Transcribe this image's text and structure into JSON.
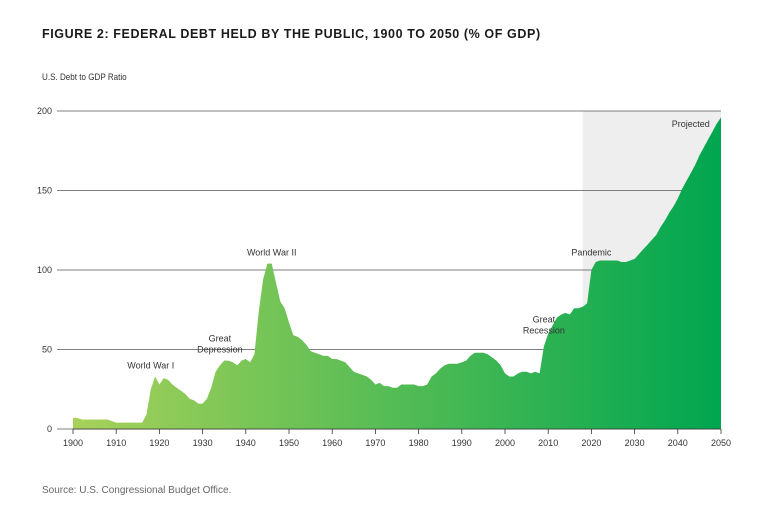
{
  "title": "FIGURE 2: FEDERAL DEBT HELD BY THE PUBLIC, 1900 TO 2050 (% OF GDP)",
  "source": "Source: U.S. Congressional Budget Office.",
  "colors": {
    "start": "#a8d15a",
    "end": "#00a650",
    "projected_bg": "#eeeeee",
    "grid": "#555555"
  },
  "chart_data": {
    "type": "area",
    "title": "FIGURE 2: FEDERAL DEBT HELD BY THE PUBLIC, 1900 TO 2050 (% OF GDP)",
    "ylabel": "U.S. Debt to GDP Ratio",
    "xlabel": "",
    "xlim": [
      1900,
      2050
    ],
    "ylim": [
      0,
      200
    ],
    "grid": true,
    "xticks": [
      "1900",
      "1910",
      "1920",
      "1930",
      "1940",
      "1950",
      "1960",
      "1970",
      "1980",
      "1990",
      "2000",
      "2010",
      "2020",
      "2030",
      "2040",
      "2050"
    ],
    "yticks": [
      "0",
      "50",
      "100",
      "150",
      "200"
    ],
    "projected_start": 2018,
    "series": [
      {
        "x": [
          1900,
          1901,
          1902,
          1903,
          1904,
          1905,
          1906,
          1907,
          1908,
          1909,
          1910,
          1911,
          1912,
          1913,
          1914,
          1915,
          1916,
          1917,
          1918,
          1919,
          1920,
          1921,
          1922,
          1923,
          1924,
          1925,
          1926,
          1927,
          1928,
          1929,
          1930,
          1931,
          1932,
          1933,
          1934,
          1935,
          1936,
          1937,
          1938,
          1939,
          1940,
          1941,
          1942,
          1943,
          1944,
          1945,
          1946,
          1947,
          1948,
          1949,
          1950,
          1951,
          1952,
          1953,
          1954,
          1955,
          1956,
          1957,
          1958,
          1959,
          1960,
          1961,
          1962,
          1963,
          1964,
          1965,
          1966,
          1967,
          1968,
          1969,
          1970,
          1971,
          1972,
          1973,
          1974,
          1975,
          1976,
          1977,
          1978,
          1979,
          1980,
          1981,
          1982,
          1983,
          1984,
          1985,
          1986,
          1987,
          1988,
          1989,
          1990,
          1991,
          1992,
          1993,
          1994,
          1995,
          1996,
          1997,
          1998,
          1999,
          2000,
          2001,
          2002,
          2003,
          2004,
          2005,
          2006,
          2007,
          2008,
          2009,
          2010,
          2011,
          2012,
          2013,
          2014,
          2015,
          2016,
          2017,
          2018,
          2019,
          2020,
          2021,
          2022,
          2023,
          2024,
          2025,
          2026,
          2027,
          2028,
          2029,
          2030,
          2031,
          2032,
          2033,
          2034,
          2035,
          2036,
          2037,
          2038,
          2039,
          2040,
          2041,
          2042,
          2043,
          2044,
          2045,
          2046,
          2047,
          2048,
          2049,
          2050
        ],
        "values": [
          7,
          7,
          6,
          6,
          6,
          6,
          6,
          6,
          6,
          5,
          4,
          4,
          4,
          4,
          4,
          4,
          4,
          9,
          25,
          33,
          28,
          32,
          31,
          28,
          26,
          24,
          22,
          19,
          18,
          16,
          16,
          19,
          26,
          36,
          40,
          43,
          43,
          42,
          40,
          43,
          44,
          42,
          47,
          74,
          94,
          104,
          104,
          92,
          80,
          76,
          67,
          59,
          58,
          56,
          53,
          49,
          48,
          47,
          46,
          46,
          44,
          44,
          43,
          42,
          39,
          36,
          35,
          34,
          33,
          31,
          28,
          29,
          27,
          27,
          26,
          26,
          28,
          28,
          28,
          28,
          27,
          27,
          28,
          33,
          35,
          38,
          40,
          41,
          41,
          41,
          42,
          43,
          46,
          48,
          48,
          48,
          47,
          45,
          43,
          40,
          35,
          33,
          33,
          35,
          36,
          36,
          35,
          36,
          35,
          52,
          60,
          65,
          70,
          72,
          73,
          72,
          76,
          76,
          77,
          79,
          100,
          105,
          106,
          106,
          106,
          106,
          106,
          105,
          105,
          106,
          107,
          110,
          113,
          116,
          119,
          122,
          127,
          131,
          136,
          140,
          145,
          151,
          156,
          161,
          166,
          172,
          177,
          182,
          187,
          192,
          196
        ]
      }
    ],
    "annotations": [
      {
        "label": "World War I",
        "x": 1918,
        "y": 33
      },
      {
        "label": "Great Depression",
        "x": 1934,
        "y": 43
      },
      {
        "label": "World War II",
        "x": 1946,
        "y": 104
      },
      {
        "label": "Great Recession",
        "x": 2009,
        "y": 55
      },
      {
        "label": "Pandemic",
        "x": 2020,
        "y": 104
      },
      {
        "label": "Projected",
        "x": 2043,
        "y": 185
      }
    ]
  }
}
